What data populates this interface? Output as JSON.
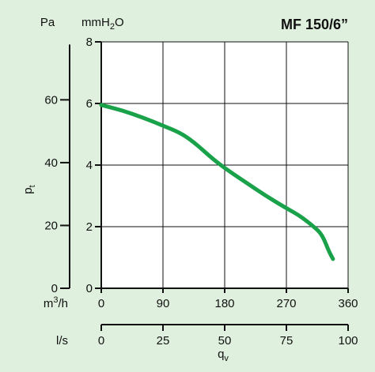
{
  "chart_data": {
    "type": "line",
    "title": "MF 150/6”",
    "ylabel": "p",
    "ylabel_sub": "t",
    "xlabel": "q",
    "xlabel_sub": "v",
    "left_axis": {
      "unit": "Pa",
      "ticks": [
        "0",
        "20",
        "40",
        "60"
      ],
      "tick_values": [
        0,
        20,
        40,
        60
      ]
    },
    "right_axis": {
      "unit_prefix": "mmH",
      "unit_sub": "2",
      "unit_suffix": "O",
      "ticks": [
        "0",
        "2",
        "4",
        "6",
        "8"
      ],
      "tick_values": [
        0,
        2,
        4,
        6,
        8
      ],
      "ylim": [
        0,
        8
      ]
    },
    "x_axis_m3h": {
      "unit_prefix": "m",
      "unit_sup": "3",
      "unit_suffix": "/h",
      "ticks": [
        "0",
        "90",
        "180",
        "270",
        "360"
      ],
      "tick_values": [
        0,
        90,
        180,
        270,
        360
      ],
      "xlim": [
        0,
        360
      ]
    },
    "x_axis_ls": {
      "unit": "l/s",
      "ticks": [
        "0",
        "25",
        "50",
        "75",
        "100"
      ],
      "tick_values": [
        0,
        25,
        50,
        75,
        100
      ]
    },
    "grid": true,
    "series": [
      {
        "color": "#1aa24a",
        "x": [
          0,
          30,
          60,
          90,
          115,
          135,
          160,
          180,
          210,
          240,
          270,
          290,
          310,
          322,
          332,
          338
        ],
        "y": [
          5.95,
          5.78,
          5.55,
          5.28,
          5.05,
          4.75,
          4.25,
          3.9,
          3.45,
          3.0,
          2.6,
          2.35,
          2.0,
          1.75,
          1.2,
          0.95
        ]
      }
    ]
  }
}
